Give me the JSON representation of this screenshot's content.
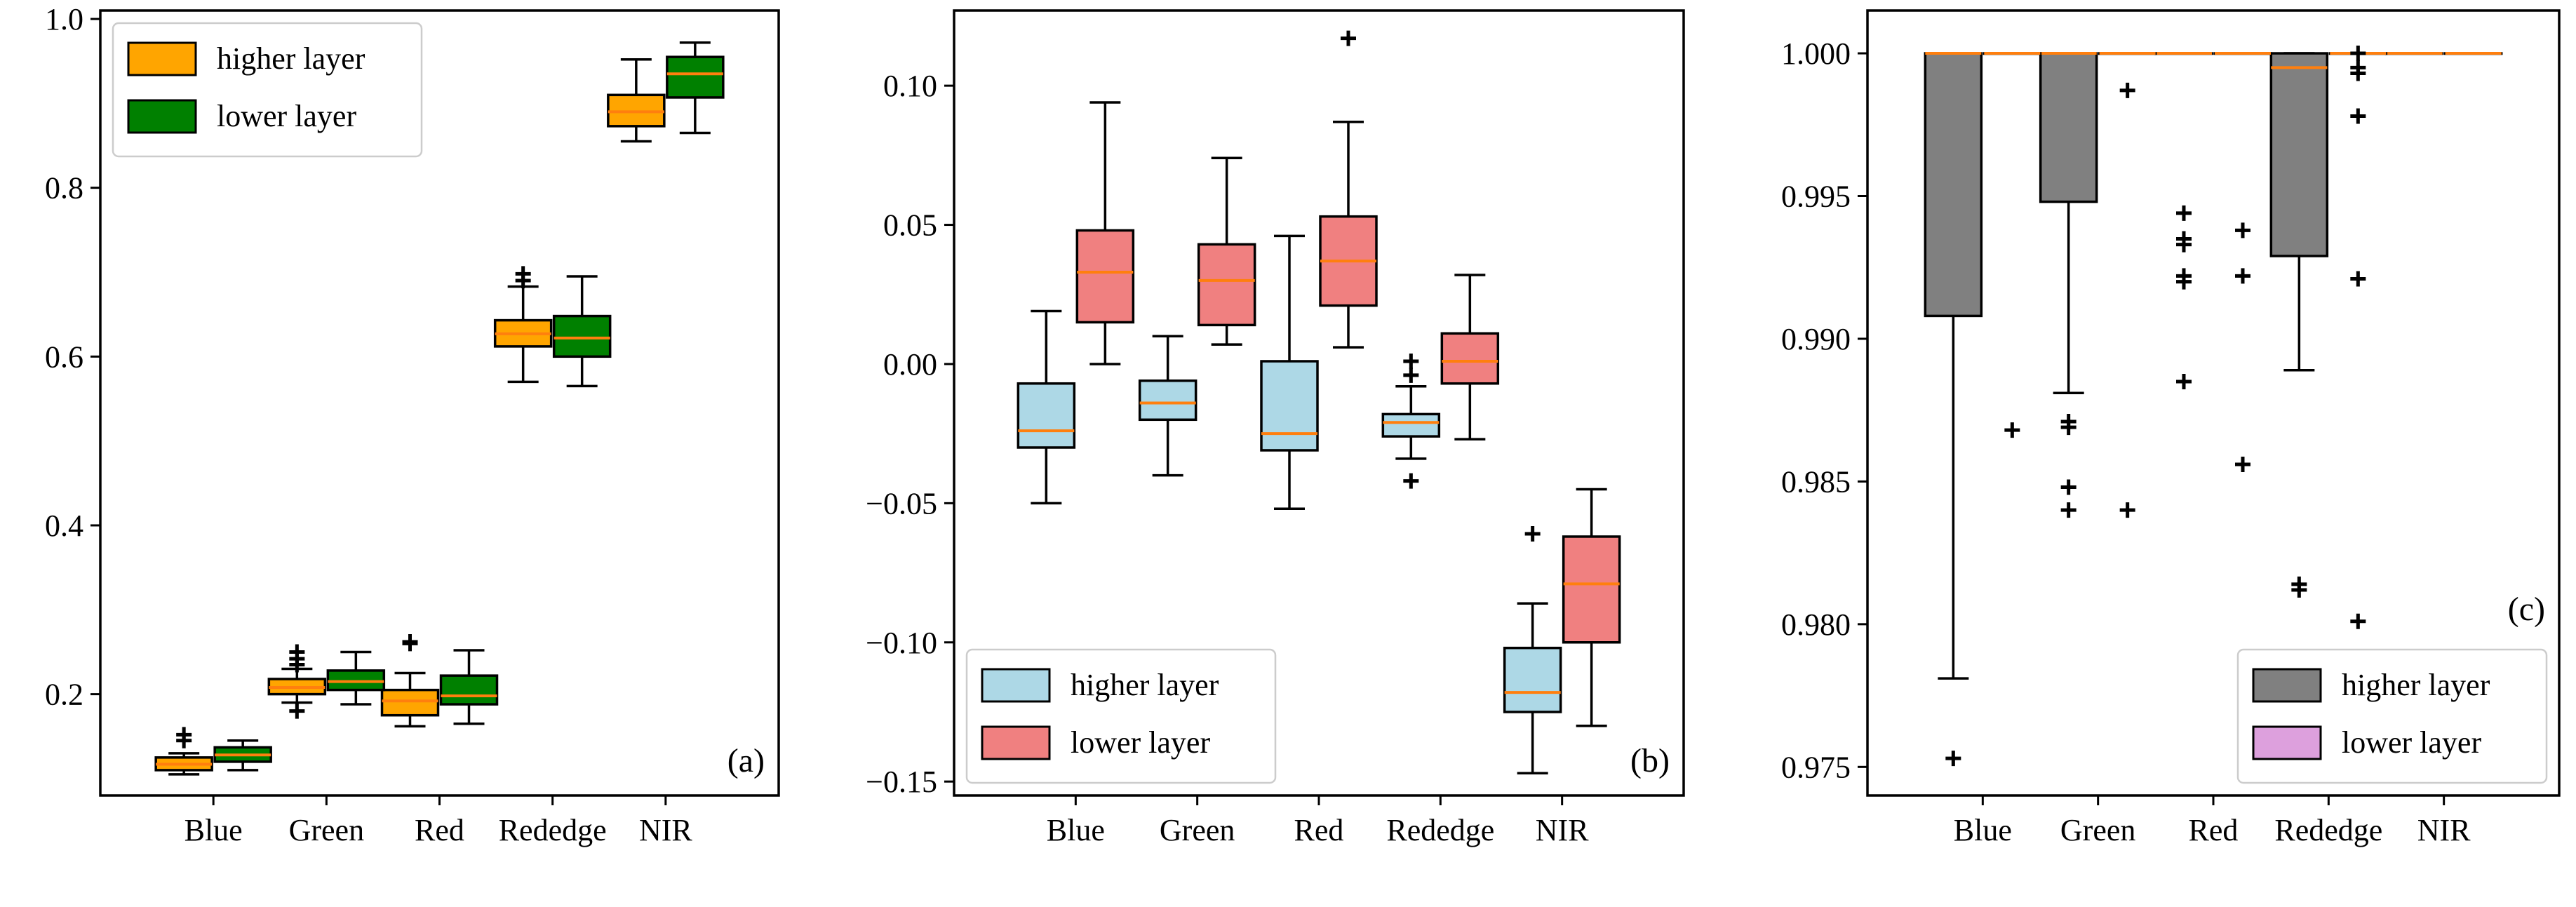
{
  "figure": {
    "colors": {
      "orange_face": "#FFA500",
      "green_face": "#008000",
      "lightblue_face": "#ADD8E6",
      "lightcoral_face": "#F08080",
      "gray_face": "#808080",
      "plum_face": "#DDA0DD",
      "median_line": "#FF7F0E",
      "edge": "#000000"
    }
  },
  "chart_data": [
    {
      "id": "a",
      "type": "box",
      "panel_label": "(a)",
      "categories": [
        "Blue",
        "Green",
        "Red",
        "Rededge",
        "NIR"
      ],
      "ylim": [
        0.08,
        1.01
      ],
      "yticks": [
        0.2,
        0.4,
        0.6,
        0.8,
        1.0
      ],
      "ytick_labels": [
        "0.2",
        "0.4",
        "0.6",
        "0.8",
        "1.0"
      ],
      "legend": {
        "location": "upper-left",
        "entries": [
          "higher layer",
          "lower layer"
        ]
      },
      "series": [
        {
          "name": "higher layer",
          "color": "#FFA500",
          "boxes": [
            {
              "whislo": 0.105,
              "q1": 0.11,
              "median": 0.117,
              "q3": 0.125,
              "whishi": 0.13,
              "fliers": [
                0.145,
                0.152
              ]
            },
            {
              "whislo": 0.19,
              "q1": 0.2,
              "median": 0.208,
              "q3": 0.218,
              "whishi": 0.23,
              "fliers": [
                0.18,
                0.235,
                0.242,
                0.25
              ]
            },
            {
              "whislo": 0.162,
              "q1": 0.175,
              "median": 0.192,
              "q3": 0.205,
              "whishi": 0.225,
              "fliers": [
                0.26,
                0.262
              ]
            },
            {
              "whislo": 0.57,
              "q1": 0.612,
              "median": 0.627,
              "q3": 0.643,
              "whishi": 0.683,
              "fliers": [
                0.69,
                0.698
              ]
            },
            {
              "whislo": 0.855,
              "q1": 0.873,
              "median": 0.89,
              "q3": 0.91,
              "whishi": 0.952,
              "fliers": []
            }
          ]
        },
        {
          "name": "lower layer",
          "color": "#008000",
          "boxes": [
            {
              "whislo": 0.11,
              "q1": 0.12,
              "median": 0.128,
              "q3": 0.137,
              "whishi": 0.145,
              "fliers": []
            },
            {
              "whislo": 0.188,
              "q1": 0.205,
              "median": 0.215,
              "q3": 0.228,
              "whishi": 0.25,
              "fliers": []
            },
            {
              "whislo": 0.165,
              "q1": 0.188,
              "median": 0.198,
              "q3": 0.222,
              "whishi": 0.252,
              "fliers": []
            },
            {
              "whislo": 0.565,
              "q1": 0.6,
              "median": 0.622,
              "q3": 0.648,
              "whishi": 0.695,
              "fliers": []
            },
            {
              "whislo": 0.865,
              "q1": 0.907,
              "median": 0.935,
              "q3": 0.955,
              "whishi": 0.972,
              "fliers": []
            }
          ]
        }
      ]
    },
    {
      "id": "b",
      "type": "box",
      "panel_label": "(b)",
      "categories": [
        "Blue",
        "Green",
        "Red",
        "Rededge",
        "NIR"
      ],
      "ylim": [
        -0.155,
        0.127
      ],
      "yticks": [
        -0.15,
        -0.1,
        -0.05,
        0.0,
        0.05,
        0.1
      ],
      "ytick_labels": [
        "−0.15",
        "−0.10",
        "−0.05",
        "0.00",
        "0.05",
        "0.10"
      ],
      "legend": {
        "location": "lower-left",
        "entries": [
          "higher layer",
          "lower layer"
        ]
      },
      "series": [
        {
          "name": "higher layer",
          "color": "#ADD8E6",
          "boxes": [
            {
              "whislo": -0.05,
              "q1": -0.03,
              "median": -0.024,
              "q3": -0.007,
              "whishi": 0.019,
              "fliers": []
            },
            {
              "whislo": -0.04,
              "q1": -0.02,
              "median": -0.014,
              "q3": -0.006,
              "whishi": 0.01,
              "fliers": []
            },
            {
              "whislo": -0.052,
              "q1": -0.031,
              "median": -0.025,
              "q3": 0.001,
              "whishi": 0.046,
              "fliers": []
            },
            {
              "whislo": -0.034,
              "q1": -0.026,
              "median": -0.021,
              "q3": -0.018,
              "whishi": -0.008,
              "fliers": [
                -0.042,
                0.001,
                -0.004
              ]
            },
            {
              "whislo": -0.147,
              "q1": -0.125,
              "median": -0.118,
              "q3": -0.102,
              "whishi": -0.086,
              "fliers": [
                -0.061
              ]
            }
          ]
        },
        {
          "name": "lower layer",
          "color": "#F08080",
          "boxes": [
            {
              "whislo": 0.0,
              "q1": 0.015,
              "median": 0.033,
              "q3": 0.048,
              "whishi": 0.094,
              "fliers": []
            },
            {
              "whislo": 0.007,
              "q1": 0.014,
              "median": 0.03,
              "q3": 0.043,
              "whishi": 0.074,
              "fliers": []
            },
            {
              "whislo": 0.006,
              "q1": 0.021,
              "median": 0.037,
              "q3": 0.053,
              "whishi": 0.087,
              "fliers": [
                0.117
              ]
            },
            {
              "whislo": -0.027,
              "q1": -0.007,
              "median": 0.001,
              "q3": 0.011,
              "whishi": 0.032,
              "fliers": []
            },
            {
              "whislo": -0.13,
              "q1": -0.1,
              "median": -0.079,
              "q3": -0.062,
              "whishi": -0.045,
              "fliers": []
            }
          ]
        }
      ]
    },
    {
      "id": "c",
      "type": "box",
      "panel_label": "(c)",
      "categories": [
        "Blue",
        "Green",
        "Red",
        "Rededge",
        "NIR"
      ],
      "ylim": [
        0.974,
        1.0015
      ],
      "yticks": [
        0.975,
        0.98,
        0.985,
        0.99,
        0.995,
        1.0
      ],
      "ytick_labels": [
        "0.975",
        "0.980",
        "0.985",
        "0.990",
        "0.995",
        "1.000"
      ],
      "legend": {
        "location": "lower-right",
        "entries": [
          "higher layer",
          "lower layer"
        ]
      },
      "series": [
        {
          "name": "higher layer",
          "color": "#808080",
          "boxes": [
            {
              "whislo": 0.9781,
              "q1": 0.9908,
              "median": 1.0,
              "q3": 1.0,
              "whishi": 1.0,
              "fliers": [
                0.9753
              ]
            },
            {
              "whislo": 0.9881,
              "q1": 0.9948,
              "median": 1.0,
              "q3": 1.0,
              "whishi": 1.0,
              "fliers": [
                0.9871,
                0.9869,
                0.9848,
                0.984
              ]
            },
            {
              "whislo": 1.0,
              "q1": 1.0,
              "median": 1.0,
              "q3": 1.0,
              "whishi": 1.0,
              "fliers": [
                0.9944,
                0.9935,
                0.9933,
                0.9922,
                0.992,
                0.9885
              ]
            },
            {
              "whislo": 0.9889,
              "q1": 0.9929,
              "median": 0.9995,
              "q3": 1.0,
              "whishi": 1.0,
              "fliers": [
                0.9814,
                0.9812
              ]
            },
            {
              "whislo": 1.0,
              "q1": 1.0,
              "median": 1.0,
              "q3": 1.0,
              "whishi": 1.0,
              "fliers": []
            }
          ]
        },
        {
          "name": "lower layer",
          "color": "#DDA0DD",
          "boxes": [
            {
              "whislo": 1.0,
              "q1": 1.0,
              "median": 1.0,
              "q3": 1.0,
              "whishi": 1.0,
              "fliers": [
                0.9868
              ]
            },
            {
              "whislo": 1.0,
              "q1": 1.0,
              "median": 1.0,
              "q3": 1.0,
              "whishi": 1.0,
              "fliers": [
                0.9987,
                0.984
              ]
            },
            {
              "whislo": 1.0,
              "q1": 1.0,
              "median": 1.0,
              "q3": 1.0,
              "whishi": 1.0,
              "fliers": [
                0.9938,
                0.9922,
                0.9856
              ]
            },
            {
              "whislo": 1.0,
              "q1": 1.0,
              "median": 1.0,
              "q3": 1.0,
              "whishi": 1.0,
              "fliers": [
                1.0,
                0.9995,
                0.9993,
                0.9978,
                0.9921,
                0.9801
              ]
            },
            {
              "whislo": 1.0,
              "q1": 1.0,
              "median": 1.0,
              "q3": 1.0,
              "whishi": 1.0,
              "fliers": []
            }
          ]
        }
      ]
    }
  ]
}
